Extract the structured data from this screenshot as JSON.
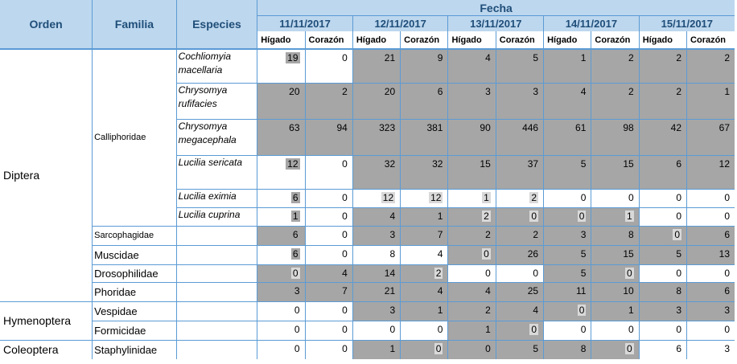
{
  "headers": {
    "orden": "Orden",
    "familia": "Familia",
    "especies": "Especies",
    "fecha": "Fecha",
    "dates": [
      "11/11/2017",
      "12/11/2017",
      "13/11/2017",
      "14/11/2017",
      "15/11/2017"
    ],
    "higado": "Hígado",
    "corazon": "Corazón"
  },
  "orders": {
    "diptera": "Diptera",
    "hymenoptera": "Hymenoptera",
    "coleoptera": "Coleoptera"
  },
  "families": {
    "calliphoridae": "Calliphoridae",
    "sarcophagidae": "Sarcophagidae",
    "muscidae": "Muscidae",
    "drosophilidae": "Drosophilidae",
    "phoridae": "Phoridae",
    "vespidae": "Vespidae",
    "formicidae": "Formicidae",
    "staphylinidae": "Staphylinidae"
  },
  "species": {
    "s0": "Cochliomyia macellaria",
    "s1": "Chrysomya rufifacies",
    "s2": "Chrysomya megacephala",
    "s3": "Lucilia sericata",
    "s4": "Lucilia eximia",
    "s5": "Lucilia cuprina"
  },
  "rows": [
    {
      "values": [
        "19",
        "0",
        "21",
        "9",
        "4",
        "5",
        "1",
        "2",
        "2",
        "2"
      ]
    },
    {
      "values": [
        "20",
        "2",
        "20",
        "6",
        "3",
        "3",
        "4",
        "2",
        "2",
        "1"
      ]
    },
    {
      "values": [
        "63",
        "94",
        "323",
        "381",
        "90",
        "446",
        "61",
        "98",
        "42",
        "67"
      ]
    },
    {
      "values": [
        "12",
        "0",
        "32",
        "32",
        "15",
        "37",
        "5",
        "15",
        "6",
        "12"
      ]
    },
    {
      "values": [
        "6",
        "0",
        "12",
        "12",
        "1",
        "2",
        "0",
        "0",
        "0",
        "0"
      ]
    },
    {
      "values": [
        "1",
        "0",
        "4",
        "1",
        "2",
        "0",
        "0",
        "1",
        "0",
        "0"
      ]
    },
    {
      "values": [
        "6",
        "0",
        "3",
        "7",
        "2",
        "2",
        "3",
        "8",
        "0",
        "6"
      ]
    },
    {
      "values": [
        "6",
        "0",
        "8",
        "4",
        "0",
        "26",
        "5",
        "15",
        "5",
        "13"
      ]
    },
    {
      "values": [
        "0",
        "4",
        "14",
        "2",
        "0",
        "0",
        "5",
        "0",
        "0",
        "0"
      ]
    },
    {
      "values": [
        "3",
        "7",
        "21",
        "4",
        "4",
        "25",
        "11",
        "10",
        "8",
        "6"
      ]
    },
    {
      "values": [
        "0",
        "0",
        "3",
        "1",
        "2",
        "4",
        "0",
        "1",
        "3",
        "3"
      ]
    },
    {
      "values": [
        "0",
        "0",
        "0",
        "0",
        "1",
        "0",
        "0",
        "0",
        "0",
        "0"
      ]
    },
    {
      "values": [
        "0",
        "0",
        "1",
        "0",
        "0",
        "5",
        "8",
        "0",
        "6",
        "3"
      ]
    }
  ],
  "colors": {
    "header_bg": "#bdd7ee",
    "header_text": "#1f4e79",
    "grid_line": "#5b9bd5",
    "shade_dark": "#a6a6a6",
    "shade_light": "#d9d9d9"
  }
}
